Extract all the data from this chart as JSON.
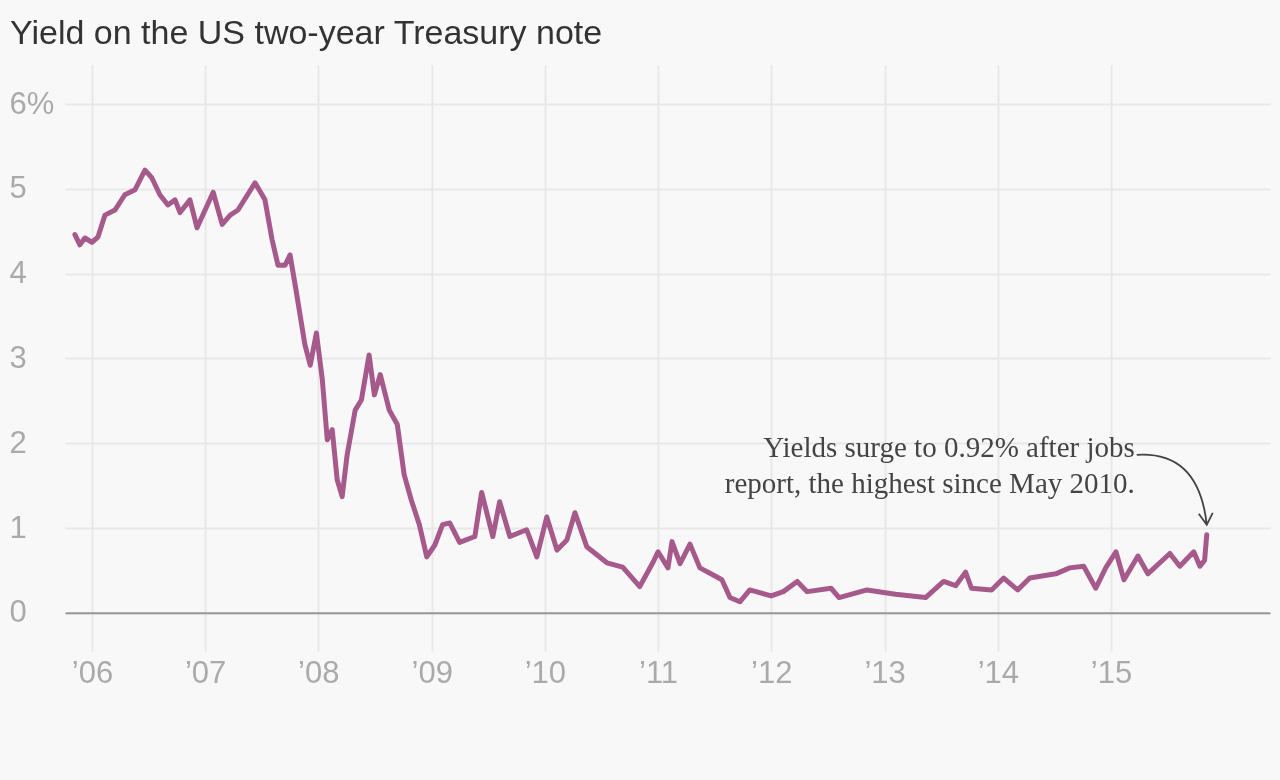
{
  "chart_data": {
    "type": "line",
    "title": "Yield on the US two-year Treasury note",
    "x": [
      "2005-11-07",
      "2005-11-23",
      "2005-12-09",
      "2006-01-01",
      "2006-01-20",
      "2006-02-12",
      "2006-03-16",
      "2006-04-17",
      "2006-05-20",
      "2006-06-21",
      "2006-07-13",
      "2006-08-08",
      "2006-09-03",
      "2006-09-26",
      "2006-10-12",
      "2006-11-13",
      "2006-12-06",
      "2007-01-01",
      "2007-01-27",
      "2007-02-25",
      "2007-03-23",
      "2007-04-17",
      "2007-06-11",
      "2007-07-13",
      "2007-08-05",
      "2007-08-24",
      "2007-09-16",
      "2007-10-02",
      "2007-10-21",
      "2007-11-19",
      "2007-12-06",
      "2007-12-26",
      "2008-01-14",
      "2008-01-30",
      "2008-02-15",
      "2008-03-02",
      "2008-03-18",
      "2008-04-03",
      "2008-04-29",
      "2008-05-19",
      "2008-06-13",
      "2008-06-30",
      "2008-07-19",
      "2008-08-17",
      "2008-09-12",
      "2008-10-04",
      "2008-10-27",
      "2008-11-22",
      "2008-12-16",
      "2009-01-11",
      "2009-02-05",
      "2009-02-28",
      "2009-04-01",
      "2009-05-20",
      "2009-06-11",
      "2009-07-17",
      "2009-08-08",
      "2009-09-10",
      "2009-11-03",
      "2009-12-06",
      "2010-01-07",
      "2010-02-09",
      "2010-03-13",
      "2010-04-08",
      "2010-05-16",
      "2010-07-20",
      "2010-09-09",
      "2010-11-03",
      "2010-12-15",
      "2011-01-01",
      "2011-02-02",
      "2011-02-15",
      "2011-03-13",
      "2011-04-14",
      "2011-05-16",
      "2011-07-01",
      "2011-07-26",
      "2011-08-21",
      "2011-09-22",
      "2011-10-24",
      "2012-01-01",
      "2012-02-09",
      "2012-03-25",
      "2012-04-26",
      "2012-07-12",
      "2012-08-07",
      "2012-11-05",
      "2013-02-05",
      "2013-05-13",
      "2013-07-10",
      "2013-08-18",
      "2013-09-19",
      "2013-10-08",
      "2013-12-12",
      "2014-01-20",
      "2014-03-06",
      "2014-04-14",
      "2014-07-07",
      "2014-08-21",
      "2014-10-05",
      "2014-11-13",
      "2014-12-15",
      "2015-01-17",
      "2015-02-12",
      "2015-03-29",
      "2015-04-30",
      "2015-07-10",
      "2015-08-11",
      "2015-09-25",
      "2015-10-15",
      "2015-10-30",
      "2015-11-06"
    ],
    "series": [
      {
        "color": "#a65a8c",
        "values": [
          4.46,
          4.34,
          4.42,
          4.37,
          4.43,
          4.69,
          4.75,
          4.93,
          4.99,
          5.22,
          5.13,
          4.93,
          4.81,
          4.87,
          4.72,
          4.87,
          4.54,
          4.75,
          4.96,
          4.58,
          4.69,
          4.75,
          5.07,
          4.87,
          4.4,
          4.1,
          4.1,
          4.22,
          3.81,
          3.16,
          2.92,
          3.3,
          2.75,
          2.04,
          2.16,
          1.57,
          1.37,
          1.86,
          2.39,
          2.51,
          3.04,
          2.57,
          2.81,
          2.39,
          2.22,
          1.63,
          1.33,
          1.04,
          0.66,
          0.8,
          1.04,
          1.06,
          0.83,
          0.9,
          1.42,
          0.9,
          1.31,
          0.9,
          0.98,
          0.66,
          1.13,
          0.74,
          0.86,
          1.18,
          0.78,
          0.59,
          0.54,
          0.31,
          0.59,
          0.72,
          0.53,
          0.84,
          0.58,
          0.81,
          0.53,
          0.44,
          0.39,
          0.18,
          0.13,
          0.27,
          0.2,
          0.25,
          0.37,
          0.25,
          0.29,
          0.18,
          0.27,
          0.22,
          0.18,
          0.37,
          0.32,
          0.48,
          0.29,
          0.27,
          0.41,
          0.27,
          0.41,
          0.46,
          0.53,
          0.55,
          0.29,
          0.53,
          0.72,
          0.39,
          0.67,
          0.46,
          0.7,
          0.55,
          0.72,
          0.55,
          0.62,
          0.92
        ]
      }
    ],
    "xlim": [
      "2005-10-06",
      "2016-05-28"
    ],
    "xticks": [
      {
        "value": "2006-01-01",
        "label": "’06"
      },
      {
        "value": "2007-01-01",
        "label": "’07"
      },
      {
        "value": "2008-01-01",
        "label": "’08"
      },
      {
        "value": "2009-01-01",
        "label": "’09"
      },
      {
        "value": "2010-01-01",
        "label": "’10"
      },
      {
        "value": "2011-01-01",
        "label": "’11"
      },
      {
        "value": "2012-01-01",
        "label": "’12"
      },
      {
        "value": "2013-01-01",
        "label": "’13"
      },
      {
        "value": "2014-01-01",
        "label": "’14"
      },
      {
        "value": "2015-01-01",
        "label": "’15"
      }
    ],
    "ylim": [
      -0.45,
      6.46
    ],
    "yticks": [
      0,
      1,
      2,
      3,
      4,
      5,
      {
        "value": 6,
        "label": "6%"
      }
    ],
    "grid": true,
    "annotations": [
      {
        "text": "Yields surge to 0.92% after jobs\nreport, the highest since May 2010.",
        "x": "2015-11-06",
        "y": 0.92
      }
    ]
  }
}
